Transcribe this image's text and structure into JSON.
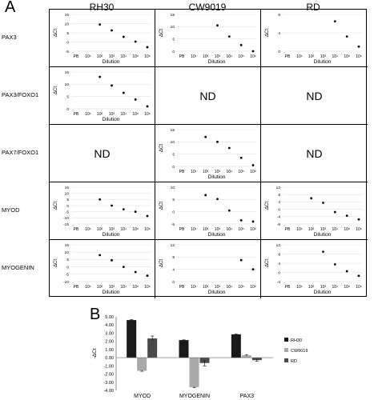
{
  "panel_a_label": "A",
  "panel_b_label": "B",
  "columns": [
    "RH30",
    "CW9019",
    "RD"
  ],
  "rows": [
    "PAX3",
    "PAX3/FOXO1",
    "PAX7/FOXO1",
    "MYOD",
    "MYOGENIN"
  ],
  "nd_label": "ND",
  "chart_data": [
    {
      "type": "scatter",
      "panel": "A",
      "xlabel": "Dilution",
      "ylabel": "ΔCt",
      "x_ticks": [
        "PB",
        "10¹",
        "10²",
        "10³",
        "10⁴",
        "10⁵",
        "10⁶"
      ],
      "cells": [
        {
          "row": "PAX3",
          "column": "RH30",
          "yticks": [
            -5,
            0,
            5,
            10,
            15
          ],
          "points": [
            [
              "10²",
              9.5
            ],
            [
              "10³",
              6.3
            ],
            [
              "10⁴",
              2.8
            ],
            [
              "10⁵",
              0.2
            ],
            [
              "10⁶",
              -2.8
            ]
          ]
        },
        {
          "row": "PAX3",
          "column": "CW9019",
          "yticks": [
            0,
            5,
            10,
            15
          ],
          "points": [
            [
              "10³",
              10.5
            ],
            [
              "10⁴",
              6
            ],
            [
              "10⁵",
              2.5
            ],
            [
              "10⁶",
              0
            ]
          ]
        },
        {
          "row": "PAX3",
          "column": "RD",
          "yticks": [
            0,
            4,
            8
          ],
          "points": [
            [
              "10⁴",
              6.5
            ],
            [
              "10⁵",
              3.2
            ],
            [
              "10⁶",
              1
            ]
          ]
        },
        {
          "row": "PAX3/FOXO1",
          "column": "RH30",
          "yticks": [
            0,
            5,
            10,
            15
          ],
          "points": [
            [
              "10²",
              13
            ],
            [
              "10³",
              9.5
            ],
            [
              "10⁴",
              6.5
            ],
            [
              "10⁵",
              3.8
            ],
            [
              "10⁶",
              1
            ]
          ]
        },
        {
          "row": "PAX3/FOXO1",
          "column": "CW9019",
          "nd": true
        },
        {
          "row": "PAX3/FOXO1",
          "column": "RD",
          "nd": true
        },
        {
          "row": "PAX7/FOXO1",
          "column": "RH30",
          "nd": true
        },
        {
          "row": "PAX7/FOXO1",
          "column": "CW9019",
          "yticks": [
            0,
            5,
            10,
            15
          ],
          "points": [
            [
              "10²",
              12
            ],
            [
              "10³",
              10
            ],
            [
              "10⁴",
              7.5
            ],
            [
              "10⁵",
              3.5
            ],
            [
              "10⁶",
              0.5
            ]
          ]
        },
        {
          "row": "PAX7/FOXO1",
          "column": "RD",
          "nd": true
        },
        {
          "row": "MYOD",
          "column": "RH30",
          "yticks": [
            -15,
            -10,
            -5,
            0,
            5,
            10,
            15
          ],
          "points": [
            [
              "10²",
              5
            ],
            [
              "10³",
              0
            ],
            [
              "10⁴",
              -3
            ],
            [
              "10⁵",
              -5
            ],
            [
              "10⁶",
              -8.5
            ]
          ]
        },
        {
          "row": "MYOD",
          "column": "CW9019",
          "yticks": [
            -5,
            0,
            5,
            10
          ],
          "points": [
            [
              "10²",
              6.8
            ],
            [
              "10³",
              5.2
            ],
            [
              "10⁴",
              0.5
            ],
            [
              "10⁵",
              -3.5
            ],
            [
              "10⁶",
              -4
            ]
          ]
        },
        {
          "row": "MYOD",
          "column": "RD",
          "yticks": [
            -8,
            -4,
            0,
            4,
            8,
            12
          ],
          "points": [
            [
              "10²",
              6
            ],
            [
              "10³",
              3.5
            ],
            [
              "10⁴",
              -1.5
            ],
            [
              "10⁵",
              -3.5
            ],
            [
              "10⁶",
              -5.5
            ]
          ]
        },
        {
          "row": "MYOGENIN",
          "column": "RH30",
          "yticks": [
            -10,
            -5,
            0,
            5,
            10,
            15
          ],
          "points": [
            [
              "10²",
              8
            ],
            [
              "10³",
              4.5
            ],
            [
              "10⁴",
              0
            ],
            [
              "10⁵",
              -3.5
            ],
            [
              "10⁶",
              -6
            ]
          ]
        },
        {
          "row": "MYOGENIN",
          "column": "CW9019",
          "yticks": [
            0,
            4,
            8,
            12
          ],
          "points": [
            [
              "10⁵",
              7
            ],
            [
              "10⁶",
              4
            ]
          ]
        },
        {
          "row": "MYOGENIN",
          "column": "RD",
          "yticks": [
            -4,
            0,
            4,
            8,
            12
          ],
          "points": [
            [
              "10³",
              9
            ],
            [
              "10⁴",
              3.5
            ],
            [
              "10⁵",
              0.5
            ],
            [
              "10⁶",
              -1.5
            ]
          ]
        }
      ]
    },
    {
      "type": "bar",
      "panel": "B",
      "categories": [
        "MYOD",
        "MYOGENIN",
        "PAX3"
      ],
      "ylabel": "-ΔCt",
      "ylim": [
        -4,
        5
      ],
      "yticks": [
        "5.00",
        "4.00",
        "3.00",
        "2.00",
        "1.00",
        "0.00",
        "-1.00",
        "-2.00",
        "-3.00",
        "-4.00"
      ],
      "legend_position": "right",
      "series": [
        {
          "name": "RH30",
          "color": "#1a1a1a",
          "values": [
            4.6,
            2.15,
            2.85
          ],
          "errors": [
            0.06,
            0.03,
            0.04
          ]
        },
        {
          "name": "CW9019",
          "color": "#a9a9a9",
          "values": [
            -1.6,
            -3.6,
            0.3
          ],
          "errors": [
            0.06,
            0.05,
            0.08
          ]
        },
        {
          "name": "RD",
          "color": "#4a4a4a",
          "values": [
            2.35,
            -0.65,
            -0.3
          ],
          "errors": [
            0.3,
            0.35,
            0.12
          ]
        }
      ]
    }
  ]
}
